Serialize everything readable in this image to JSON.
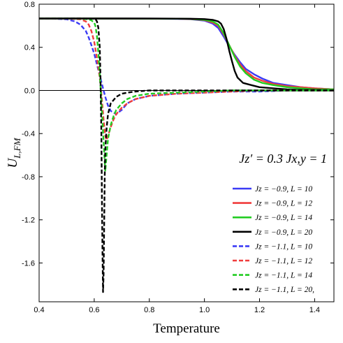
{
  "chart_data": {
    "type": "line",
    "xlabel": "Temperature",
    "ylabel": "U_{L,FM}",
    "ylabel_display": "U",
    "ylabel_sub": "L,FM",
    "xlim": [
      0.4,
      1.47
    ],
    "ylim": [
      -1.96,
      0.8
    ],
    "xticks": [
      0.4,
      0.6,
      0.8,
      1.0,
      1.2,
      1.4
    ],
    "xtick_labels": [
      "0.4",
      "0.6",
      "0.8",
      "1.0",
      "1.2",
      "1.4"
    ],
    "yticks": [
      0.8,
      0.4,
      0.0,
      -0.4,
      -0.8,
      -1.2,
      -1.6
    ],
    "ytick_labels": [
      "0.8",
      "0.4",
      "0.0",
      "-0.4",
      "-0.8",
      "-1.2",
      "-1.6"
    ],
    "reference_line_y": 0.0,
    "annotation": "J_{z'} = 0.3 J_{x,y} = 1",
    "annotation_display": "Jz′ = 0.3 Jx,y = 1",
    "legend_position": "lower-right",
    "grid": false,
    "series": [
      {
        "name": "J_z = -0.9, L = 10",
        "display": "Jz = −0.9, L = 10",
        "color": "#3b3bf5",
        "style": "solid",
        "x": [
          0.4,
          0.6,
          0.8,
          0.9,
          0.95,
          1.0,
          1.03,
          1.05,
          1.07,
          1.09,
          1.11,
          1.13,
          1.15,
          1.18,
          1.21,
          1.25,
          1.3,
          1.35,
          1.4,
          1.47
        ],
        "y": [
          0.667,
          0.667,
          0.666,
          0.664,
          0.66,
          0.648,
          0.62,
          0.58,
          0.5,
          0.41,
          0.33,
          0.26,
          0.2,
          0.15,
          0.11,
          0.07,
          0.05,
          0.03,
          0.02,
          0.01
        ]
      },
      {
        "name": "J_z = -0.9, L = 12",
        "display": "Jz = −0.9, L = 12",
        "color": "#f03c3c",
        "style": "solid",
        "x": [
          0.4,
          0.6,
          0.8,
          0.9,
          0.95,
          1.0,
          1.03,
          1.05,
          1.07,
          1.09,
          1.11,
          1.13,
          1.15,
          1.18,
          1.21,
          1.25,
          1.3,
          1.35,
          1.4,
          1.47
        ],
        "y": [
          0.667,
          0.667,
          0.666,
          0.665,
          0.662,
          0.652,
          0.63,
          0.6,
          0.52,
          0.42,
          0.32,
          0.24,
          0.18,
          0.12,
          0.09,
          0.06,
          0.04,
          0.03,
          0.02,
          0.01
        ]
      },
      {
        "name": "J_z = -0.9, L = 14",
        "display": "Jz = −0.9, L = 14",
        "color": "#22cc22",
        "style": "solid",
        "x": [
          0.4,
          0.6,
          0.8,
          0.9,
          0.95,
          1.0,
          1.03,
          1.05,
          1.07,
          1.09,
          1.11,
          1.13,
          1.15,
          1.18,
          1.21,
          1.25,
          1.3,
          1.35,
          1.4,
          1.47
        ],
        "y": [
          0.667,
          0.667,
          0.666,
          0.665,
          0.663,
          0.655,
          0.64,
          0.61,
          0.53,
          0.42,
          0.31,
          0.22,
          0.16,
          0.1,
          0.07,
          0.05,
          0.03,
          0.02,
          0.01,
          0.01
        ]
      },
      {
        "name": "J_z = -0.9, L = 20",
        "display": "Jz = −0.9, L = 20",
        "color": "#000000",
        "style": "solid",
        "x": [
          0.4,
          0.6,
          0.8,
          0.9,
          0.95,
          1.0,
          1.03,
          1.05,
          1.06,
          1.07,
          1.08,
          1.09,
          1.1,
          1.11,
          1.12,
          1.14,
          1.17,
          1.2,
          1.25,
          1.3,
          1.35,
          1.4,
          1.47
        ],
        "y": [
          0.667,
          0.667,
          0.667,
          0.666,
          0.665,
          0.662,
          0.655,
          0.64,
          0.62,
          0.57,
          0.48,
          0.37,
          0.27,
          0.18,
          0.12,
          0.07,
          0.05,
          0.03,
          0.02,
          0.01,
          0.005,
          0.005,
          0.0
        ]
      },
      {
        "name": "J_z = -1.1, L = 10",
        "display": "Jz = −1.1, L = 10",
        "color": "#3b3bf5",
        "style": "dashed",
        "x": [
          0.4,
          0.45,
          0.5,
          0.53,
          0.55,
          0.57,
          0.58,
          0.59,
          0.6,
          0.61,
          0.62,
          0.63,
          0.64,
          0.65,
          0.66,
          0.68,
          0.7,
          0.72,
          0.75,
          0.8,
          0.9,
          1.0,
          1.1,
          1.2,
          1.3,
          1.47
        ],
        "y": [
          0.667,
          0.666,
          0.66,
          0.64,
          0.61,
          0.55,
          0.49,
          0.42,
          0.34,
          0.24,
          0.14,
          0.04,
          -0.06,
          -0.14,
          -0.19,
          -0.22,
          -0.18,
          -0.12,
          -0.08,
          -0.05,
          -0.03,
          -0.02,
          -0.01,
          -0.01,
          0.0,
          0.0
        ]
      },
      {
        "name": "J_z = -1.1, L = 12",
        "display": "Jz = −1.1, L = 12",
        "color": "#f03c3c",
        "style": "dashed",
        "x": [
          0.4,
          0.5,
          0.55,
          0.57,
          0.58,
          0.59,
          0.6,
          0.61,
          0.62,
          0.625,
          0.63,
          0.635,
          0.64,
          0.645,
          0.65,
          0.66,
          0.67,
          0.68,
          0.7,
          0.72,
          0.75,
          0.8,
          0.9,
          1.0,
          1.1,
          1.2,
          1.3,
          1.47
        ],
        "y": [
          0.667,
          0.666,
          0.66,
          0.64,
          0.61,
          0.55,
          0.45,
          0.3,
          0.12,
          0.0,
          -0.15,
          -0.3,
          -0.42,
          -0.46,
          -0.42,
          -0.34,
          -0.27,
          -0.22,
          -0.16,
          -0.12,
          -0.08,
          -0.05,
          -0.03,
          -0.02,
          -0.01,
          0.0,
          0.0,
          0.0
        ]
      },
      {
        "name": "J_z = -1.1, L = 14",
        "display": "Jz = −1.1, L = 14",
        "color": "#22cc22",
        "style": "dashed",
        "x": [
          0.4,
          0.5,
          0.55,
          0.58,
          0.59,
          0.6,
          0.605,
          0.61,
          0.615,
          0.62,
          0.625,
          0.63,
          0.635,
          0.64,
          0.645,
          0.65,
          0.66,
          0.67,
          0.68,
          0.7,
          0.72,
          0.75,
          0.8,
          0.9,
          1.0,
          1.1,
          1.2,
          1.47
        ],
        "y": [
          0.667,
          0.667,
          0.665,
          0.66,
          0.65,
          0.63,
          0.59,
          0.5,
          0.35,
          0.15,
          -0.05,
          -0.28,
          -0.52,
          -0.75,
          -0.6,
          -0.45,
          -0.32,
          -0.24,
          -0.18,
          -0.12,
          -0.08,
          -0.05,
          -0.03,
          -0.02,
          -0.01,
          0.0,
          0.0,
          0.0
        ]
      },
      {
        "name": "J_z = -1.1, L = 20,",
        "display": "Jz = −1.1, L = 20,",
        "color": "#000000",
        "style": "dashed",
        "x": [
          0.4,
          0.5,
          0.55,
          0.58,
          0.6,
          0.605,
          0.61,
          0.615,
          0.62,
          0.623,
          0.626,
          0.628,
          0.63,
          0.632,
          0.634,
          0.636,
          0.638,
          0.64,
          0.645,
          0.65,
          0.66,
          0.68,
          0.7,
          0.72,
          0.75,
          0.8,
          0.9,
          1.0,
          1.2,
          1.47
        ],
        "y": [
          0.667,
          0.667,
          0.667,
          0.666,
          0.665,
          0.66,
          0.64,
          0.58,
          0.4,
          0.1,
          -0.4,
          -1.0,
          -1.5,
          -1.87,
          -1.7,
          -1.25,
          -0.8,
          -0.55,
          -0.35,
          -0.22,
          -0.12,
          -0.06,
          -0.03,
          -0.02,
          -0.01,
          0.0,
          0.0,
          0.0,
          0.0,
          0.0
        ]
      }
    ]
  }
}
